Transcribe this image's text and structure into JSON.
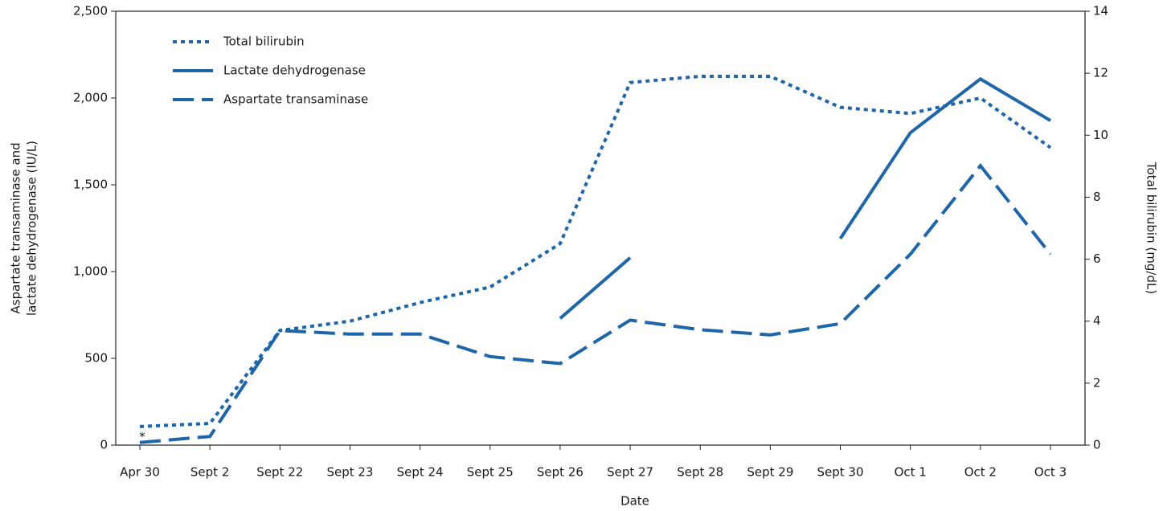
{
  "chart_data": {
    "type": "line",
    "x_label": "Date",
    "y_label": [
      "Aspartate transaminase and",
      "lactate dehydrogenase (IU/L)"
    ],
    "y2_label": "Total bilirubin (mg/dL)",
    "annotation": "*",
    "categories": [
      "Apr 30",
      "Sept 2",
      "Sept 22",
      "Sept 23",
      "Sept 24",
      "Sept 25",
      "Sept 26",
      "Sept 27",
      "Sept 28",
      "Sept 29",
      "Sept 30",
      "Oct 1",
      "Oct 2",
      "Oct 3"
    ],
    "series": [
      {
        "name": "Total bilirubin",
        "color": "#1f66a8",
        "style": "dotted",
        "axis": "y2",
        "values": [
          0.6,
          0.7,
          3.7,
          4.0,
          4.6,
          5.1,
          6.5,
          11.7,
          11.9,
          11.9,
          10.9,
          10.7,
          11.2,
          9.6
        ]
      },
      {
        "name": "Lactate dehydrogenase",
        "color": "#1f66a8",
        "style": "solid",
        "values": [
          null,
          null,
          null,
          null,
          null,
          null,
          730,
          1080,
          null,
          null,
          1190,
          1800,
          2110,
          1870
        ]
      },
      {
        "name": "Aspartate transaminase",
        "color": "#1f66a8",
        "style": "dashed",
        "values": [
          15,
          50,
          660,
          640,
          640,
          510,
          470,
          720,
          665,
          635,
          700,
          1100,
          1610,
          1100
        ]
      }
    ],
    "ylim": [
      0,
      2500
    ],
    "yticks": [
      0,
      500,
      {
        "value": 1000,
        "label": "1,000"
      },
      {
        "value": 1500,
        "label": "1,500"
      },
      {
        "value": 2000,
        "label": "2,000"
      },
      {
        "value": 2500,
        "label": "2,500"
      }
    ],
    "y2lim": [
      0,
      14
    ],
    "y2ticks": [
      0,
      2,
      4,
      6,
      8,
      10,
      12,
      14
    ],
    "legend": "upper left",
    "grid": false
  }
}
